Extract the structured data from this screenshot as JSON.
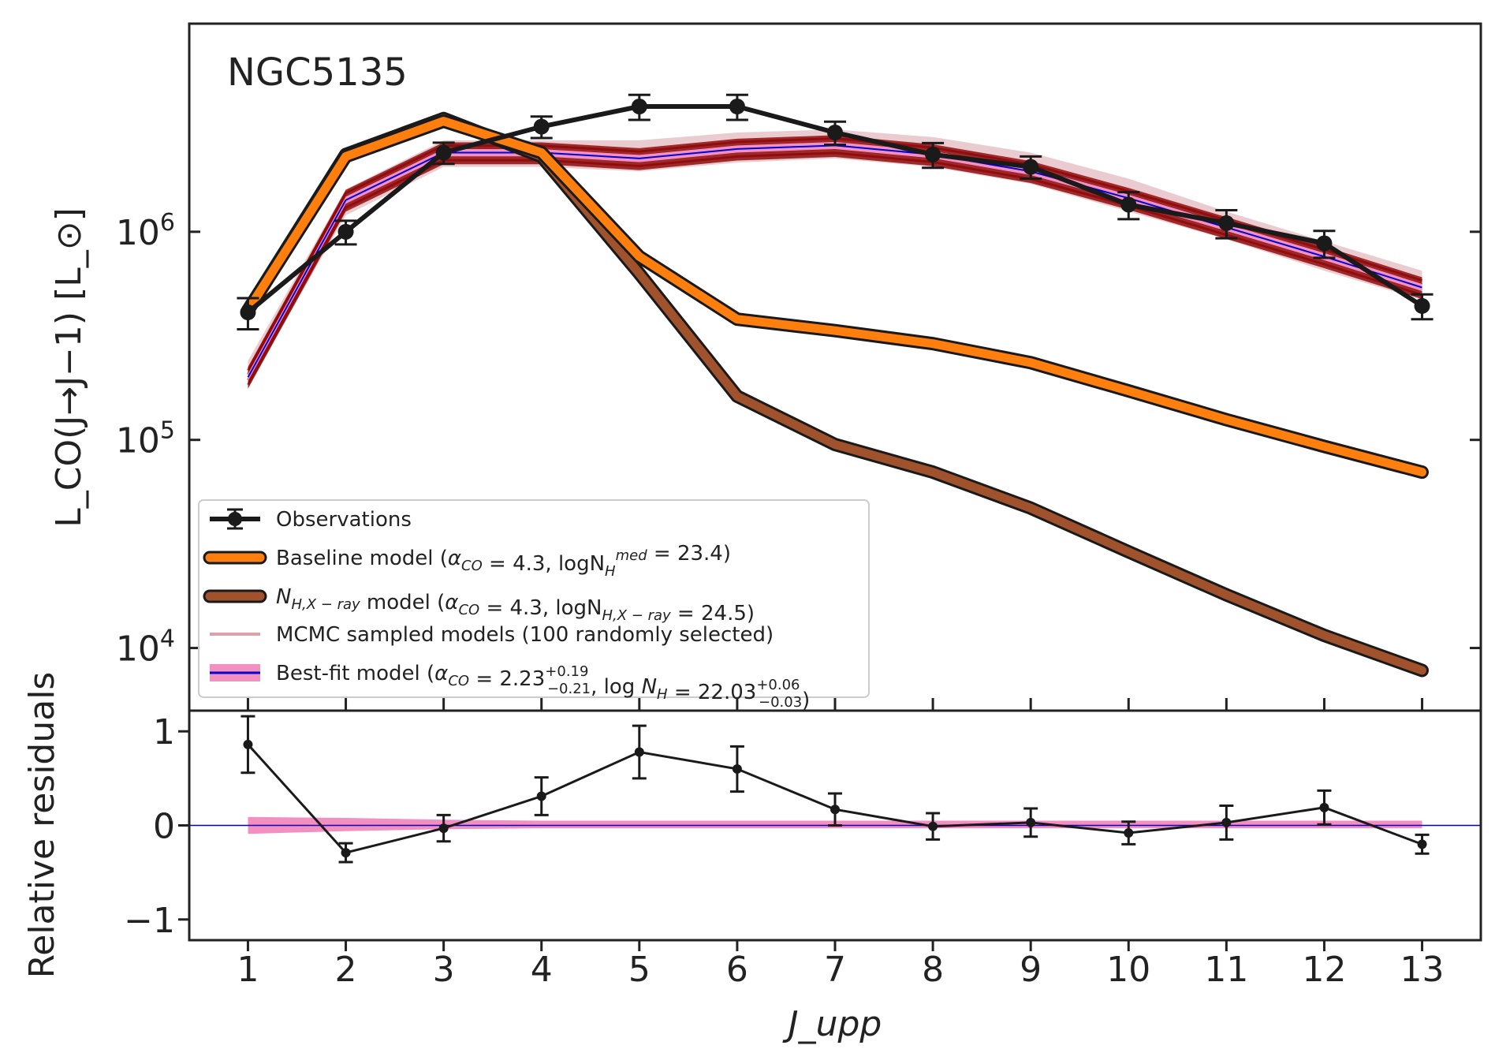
{
  "chart_data": {
    "type": "line",
    "title": "NGC5135",
    "x": [
      1,
      2,
      3,
      4,
      5,
      6,
      7,
      8,
      9,
      10,
      11,
      12,
      13
    ],
    "xlabel": "J_upp",
    "x_tick_labels": [
      "1",
      "2",
      "3",
      "4",
      "5",
      "6",
      "7",
      "8",
      "9",
      "10",
      "11",
      "12",
      "13"
    ],
    "top_panel": {
      "ylabel": "L_CO(J→J−1) [L_⊙]",
      "yscale": "log",
      "ylim": [
        5000,
        10000000
      ],
      "y_ticks": [
        10000,
        100000,
        1000000
      ],
      "y_tick_labels": [
        {
          "base": "10",
          "exp": "4"
        },
        {
          "base": "10",
          "exp": "5"
        },
        {
          "base": "10",
          "exp": "6"
        }
      ],
      "series": [
        {
          "key": "observations",
          "name": "Observations",
          "color": "#1a1a1a",
          "values": [
            410000,
            1000000,
            2400000,
            3200000,
            4000000,
            4000000,
            3000000,
            2350000,
            2050000,
            1350000,
            1100000,
            880000,
            440000
          ],
          "err_low": [
            70000,
            130000,
            280000,
            380000,
            550000,
            550000,
            380000,
            320000,
            250000,
            200000,
            170000,
            130000,
            60000
          ],
          "err_high": [
            70000,
            130000,
            280000,
            380000,
            550000,
            550000,
            380000,
            320000,
            250000,
            200000,
            170000,
            130000,
            60000
          ]
        },
        {
          "key": "baseline",
          "name": "Baseline model",
          "legend_parts": [
            {
              "t": "Baseline model ("
            },
            {
              "t": "α",
              "i": true
            },
            {
              "t": "CO",
              "sub": true,
              "i": true
            },
            {
              "t": " = 4.3, logN"
            },
            {
              "t": "H",
              "sub": true,
              "i": true
            },
            {
              "t": "med",
              "sup": true,
              "i": true
            },
            {
              "t": " = 23.4)"
            }
          ],
          "color": "#ff7f0e",
          "values": [
            420000,
            2300000,
            3400000,
            2400000,
            760000,
            380000,
            335000,
            290000,
            235000,
            172000,
            125000,
            93000,
            70000
          ]
        },
        {
          "key": "nh_xray",
          "name": "N_H,X−ray model",
          "legend_parts": [
            {
              "t": "N",
              "i": true
            },
            {
              "t": "H,X − ray",
              "sub": true,
              "i": true
            },
            {
              "t": " model ("
            },
            {
              "t": "α",
              "i": true
            },
            {
              "t": "CO",
              "sub": true,
              "i": true
            },
            {
              "t": " = 4.3, logN"
            },
            {
              "t": "H,X − ray",
              "sub": true,
              "i": true
            },
            {
              "t": " = 24.5)"
            }
          ],
          "color": "#a0522d",
          "values": [
            420000,
            2350000,
            3500000,
            2300000,
            630000,
            162000,
            95000,
            70000,
            47000,
            29000,
            18000,
            11500,
            7800
          ]
        },
        {
          "key": "mcmc",
          "name": "MCMC sampled models (100 randomly selected)",
          "color": "#d9a3a9",
          "band_low": [
            180000,
            1200000,
            2050000,
            2050000,
            1950000,
            2150000,
            2250000,
            2050000,
            1700000,
            1250000,
            920000,
            650000,
            470000
          ],
          "band_high": [
            240000,
            1600000,
            2750000,
            2750000,
            2750000,
            3000000,
            3100000,
            2850000,
            2400000,
            1800000,
            1250000,
            900000,
            650000
          ]
        },
        {
          "key": "bestfit",
          "name": "Best-fit model",
          "legend_parts": [
            {
              "t": "Best-fit model ("
            },
            {
              "t": "α",
              "i": true
            },
            {
              "t": "CO",
              "sub": true,
              "i": true
            },
            {
              "t": " = 2.23"
            },
            {
              "t": "+0.19",
              "supsub": "−0.21"
            },
            {
              "t": ", log "
            },
            {
              "t": "N",
              "i": true
            },
            {
              "t": "H",
              "sub": true,
              "i": true
            },
            {
              "t": " = 22.03"
            },
            {
              "t": "+0.06",
              "supsub": "−0.03"
            },
            {
              "t": ")"
            }
          ],
          "color": "#0000cc",
          "band_color": "#f48fc2",
          "values": [
            200000,
            1420000,
            2400000,
            2400000,
            2250000,
            2500000,
            2600000,
            2350000,
            1950000,
            1450000,
            1050000,
            760000,
            540000
          ]
        }
      ]
    },
    "bottom_panel": {
      "ylabel": "Relative residuals",
      "ylim": [
        -1.22,
        1.22
      ],
      "y_ticks": [
        -1,
        0,
        1
      ],
      "y_tick_labels": [
        "−1",
        "0",
        "1"
      ],
      "residuals": [
        0.86,
        -0.29,
        -0.03,
        0.31,
        0.78,
        0.6,
        0.17,
        -0.01,
        0.03,
        -0.08,
        0.03,
        0.19,
        -0.2
      ],
      "residual_err": [
        0.3,
        0.1,
        0.14,
        0.2,
        0.28,
        0.24,
        0.17,
        0.14,
        0.15,
        0.12,
        0.18,
        0.18,
        0.1
      ],
      "band_low": [
        -0.09,
        -0.06,
        -0.04,
        -0.03,
        -0.03,
        -0.03,
        -0.03,
        -0.03,
        -0.03,
        -0.03,
        -0.03,
        -0.03,
        -0.03
      ],
      "band_high": [
        0.09,
        0.08,
        0.06,
        0.05,
        0.05,
        0.05,
        0.05,
        0.05,
        0.05,
        0.05,
        0.05,
        0.05,
        0.05
      ],
      "zero_line_color": "#0000cc",
      "band_color": "#f48fc2"
    },
    "legend_placement": "lower-left"
  }
}
